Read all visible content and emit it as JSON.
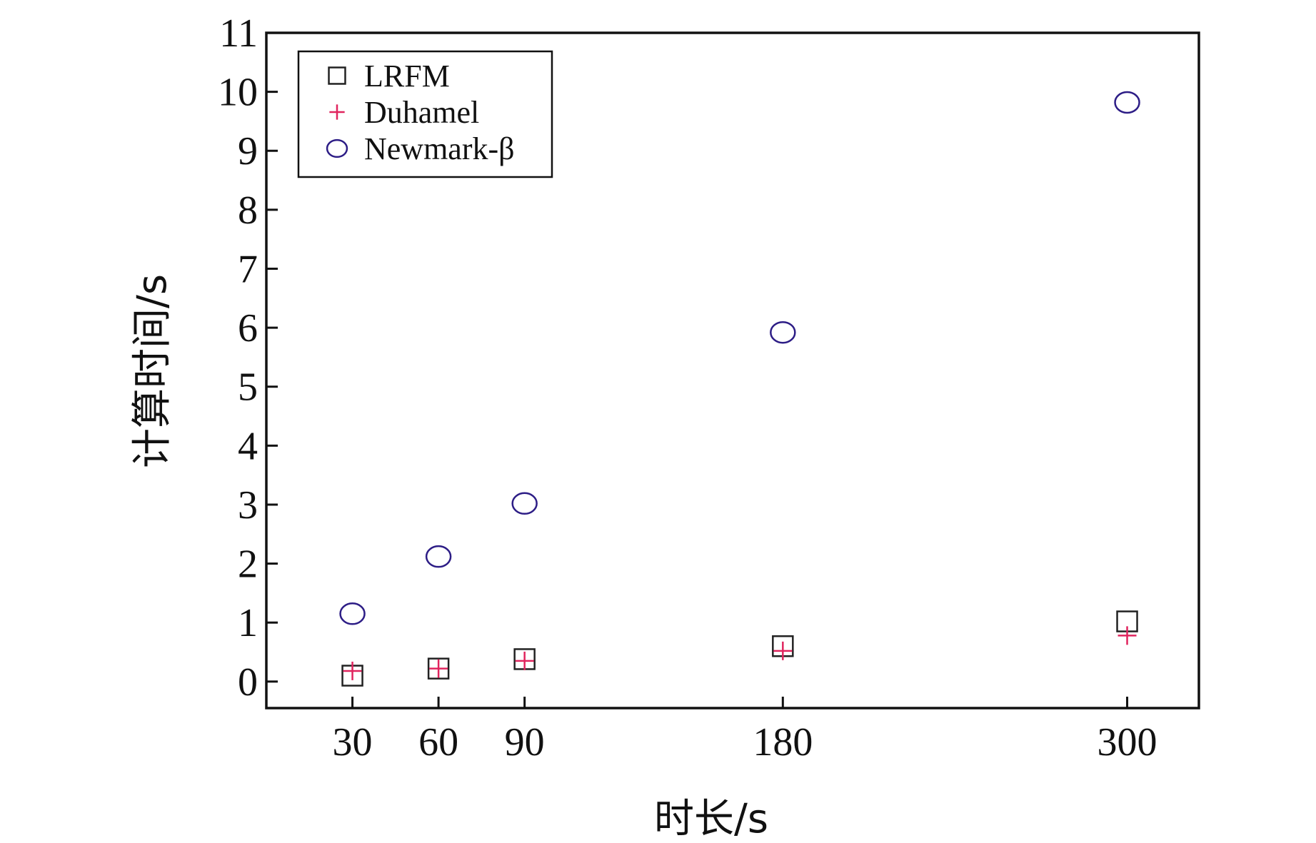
{
  "chart_data": {
    "type": "scatter",
    "xlabel": "时长/s",
    "ylabel": "计算时间/s",
    "x_ticks": [
      30,
      60,
      90,
      180,
      300
    ],
    "y_ticks": [
      0,
      1,
      2,
      3,
      4,
      5,
      6,
      7,
      8,
      9,
      10,
      11
    ],
    "xlim": [
      0,
      325
    ],
    "ylim": [
      -0.45,
      11
    ],
    "grid": false,
    "legend_position": "top-left",
    "series": [
      {
        "name": "LRFM",
        "marker": "square",
        "color": "#222222",
        "x": [
          30,
          60,
          90,
          180,
          300
        ],
        "y": [
          0.1,
          0.22,
          0.38,
          0.6,
          1.02
        ]
      },
      {
        "name": "Duhamel",
        "marker": "plus",
        "color": "#e0245e",
        "x": [
          30,
          60,
          90,
          180,
          300
        ],
        "y": [
          0.18,
          0.22,
          0.35,
          0.52,
          0.78
        ]
      },
      {
        "name": "Newmark-β",
        "marker": "circle",
        "color": "#2d1d86",
        "x": [
          30,
          60,
          90,
          180,
          300
        ],
        "y": [
          1.15,
          2.12,
          3.02,
          5.92,
          9.82
        ]
      }
    ]
  }
}
